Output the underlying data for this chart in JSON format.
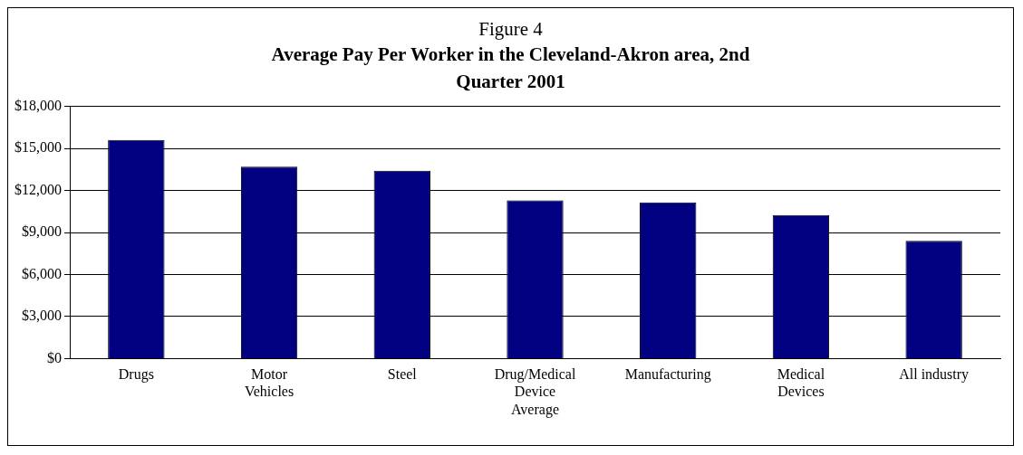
{
  "chart_data": {
    "type": "bar",
    "title": "Figure 4",
    "subtitle": "Average Pay Per Worker in the Cleveland-Akron area, 2nd Quarter 2001",
    "categories": [
      "Drugs",
      "Motor Vehicles",
      "Steel",
      "Drug/Medical Device Average",
      "Manufacturing",
      "Medical Devices",
      "All industry"
    ],
    "values": [
      15600,
      13700,
      13400,
      11300,
      11150,
      10250,
      8400
    ],
    "color": "#000080",
    "ylim": [
      0,
      18000
    ],
    "yticks": [
      {
        "value": 0,
        "label": "$0"
      },
      {
        "value": 3000,
        "label": "$3,000"
      },
      {
        "value": 6000,
        "label": "$6,000"
      },
      {
        "value": 9000,
        "label": "$9,000"
      },
      {
        "value": 12000,
        "label": "$12,000"
      },
      {
        "value": 15000,
        "label": "$15,000"
      },
      {
        "value": 18000,
        "label": "$18,000"
      }
    ],
    "grid": "y",
    "legend": false
  }
}
